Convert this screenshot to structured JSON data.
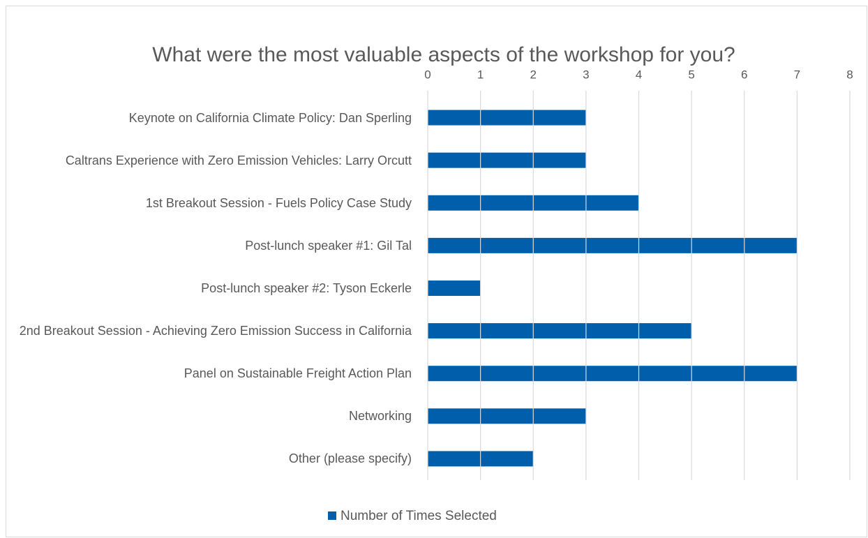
{
  "chart_data": {
    "type": "bar",
    "orientation": "horizontal",
    "title": "What were the most valuable aspects of the workshop for you?",
    "categories": [
      "Keynote on California Climate Policy: Dan Sperling",
      "Caltrans Experience with Zero Emission Vehicles: Larry Orcutt",
      "1st Breakout Session - Fuels Policy Case Study",
      "Post-lunch speaker #1: Gil Tal",
      "Post-lunch speaker #2: Tyson Eckerle",
      "2nd Breakout Session - Achieving Zero Emission Success in California",
      "Panel on Sustainable Freight Action Plan",
      "Networking",
      "Other (please specify)"
    ],
    "series": [
      {
        "name": "Number of Times Selected",
        "color": "#005eab",
        "values": [
          3,
          3,
          4,
          7,
          1,
          5,
          7,
          3,
          2
        ]
      }
    ],
    "xlim": [
      0,
      8
    ],
    "xticks": [
      0,
      1,
      2,
      3,
      4,
      5,
      6,
      7,
      8
    ],
    "grid": true,
    "legend": "bottom"
  }
}
